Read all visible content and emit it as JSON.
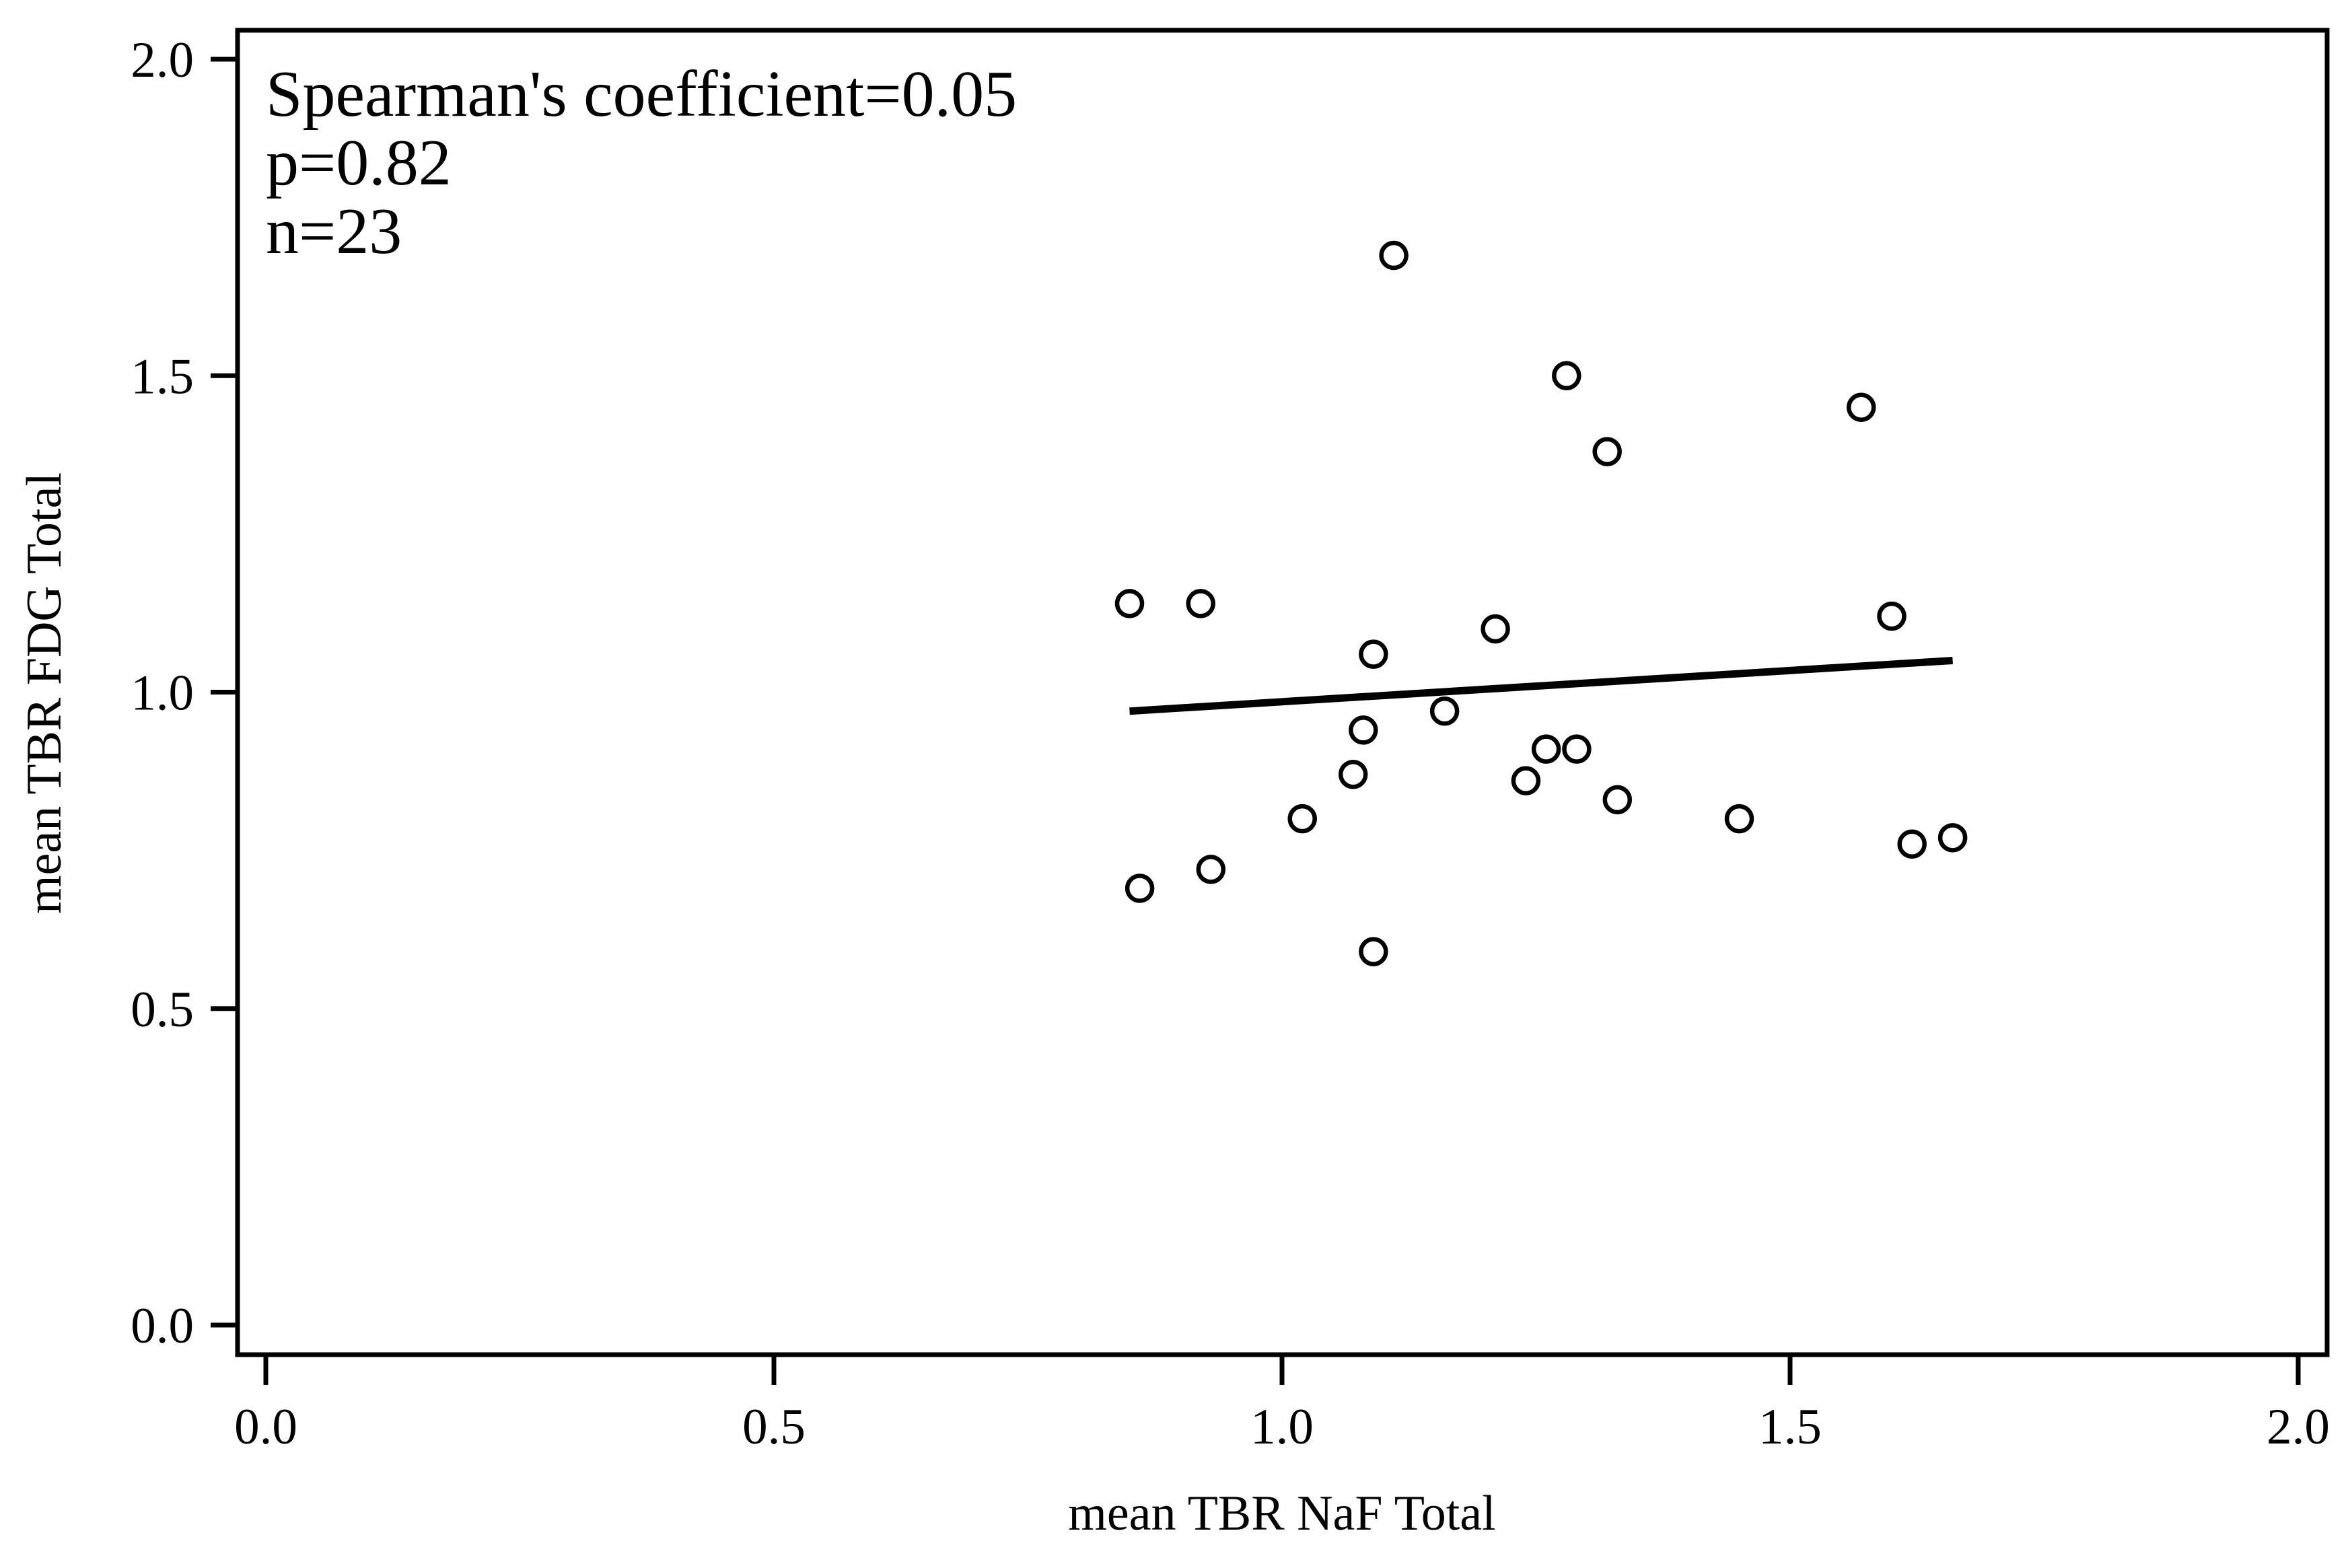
{
  "figure": {
    "background_color": "#ffffff",
    "foreground_color": "#000000"
  },
  "chart_data": {
    "type": "scatter",
    "title": "",
    "xlabel": "mean TBR NaF Total",
    "ylabel": "mean TBR FDG Total",
    "annotation_lines": [
      "Spearman's coefficient=0.05",
      "p=0.82",
      "n=23"
    ],
    "stats": {
      "spearman_coefficient": 0.05,
      "p_value": 0.82,
      "n": 23
    },
    "xlim": [
      -0.03,
      2.03
    ],
    "ylim": [
      -0.05,
      2.05
    ],
    "x_ticks": [
      0.0,
      0.5,
      1.0,
      1.5,
      2.0
    ],
    "y_ticks": [
      0.0,
      0.5,
      1.0,
      1.5,
      2.0
    ],
    "x_tick_labels": [
      "0.0",
      "0.5",
      "1.0",
      "1.5",
      "2.0"
    ],
    "y_tick_labels": [
      "0.0",
      "0.5",
      "1.0",
      "1.5",
      "2.0"
    ],
    "grid": false,
    "legend": "none",
    "marker_style": "open-circle",
    "marker_color": "#000000",
    "line_color": "#000000",
    "points": [
      {
        "x": 1.11,
        "y": 1.69
      },
      {
        "x": 1.28,
        "y": 1.5
      },
      {
        "x": 1.32,
        "y": 1.38
      },
      {
        "x": 1.57,
        "y": 1.45
      },
      {
        "x": 0.85,
        "y": 1.14
      },
      {
        "x": 0.92,
        "y": 1.14
      },
      {
        "x": 1.21,
        "y": 1.1
      },
      {
        "x": 1.6,
        "y": 1.12
      },
      {
        "x": 1.09,
        "y": 1.06
      },
      {
        "x": 1.16,
        "y": 0.97
      },
      {
        "x": 1.08,
        "y": 0.94
      },
      {
        "x": 1.26,
        "y": 0.91
      },
      {
        "x": 1.29,
        "y": 0.91
      },
      {
        "x": 1.07,
        "y": 0.87
      },
      {
        "x": 1.24,
        "y": 0.86
      },
      {
        "x": 1.33,
        "y": 0.83
      },
      {
        "x": 1.02,
        "y": 0.8
      },
      {
        "x": 1.45,
        "y": 0.8
      },
      {
        "x": 1.62,
        "y": 0.76
      },
      {
        "x": 1.66,
        "y": 0.77
      },
      {
        "x": 0.93,
        "y": 0.72
      },
      {
        "x": 0.86,
        "y": 0.69
      },
      {
        "x": 1.09,
        "y": 0.59
      }
    ],
    "trendline": {
      "x1": 0.85,
      "y1": 0.97,
      "x2": 1.66,
      "y2": 1.05
    }
  }
}
